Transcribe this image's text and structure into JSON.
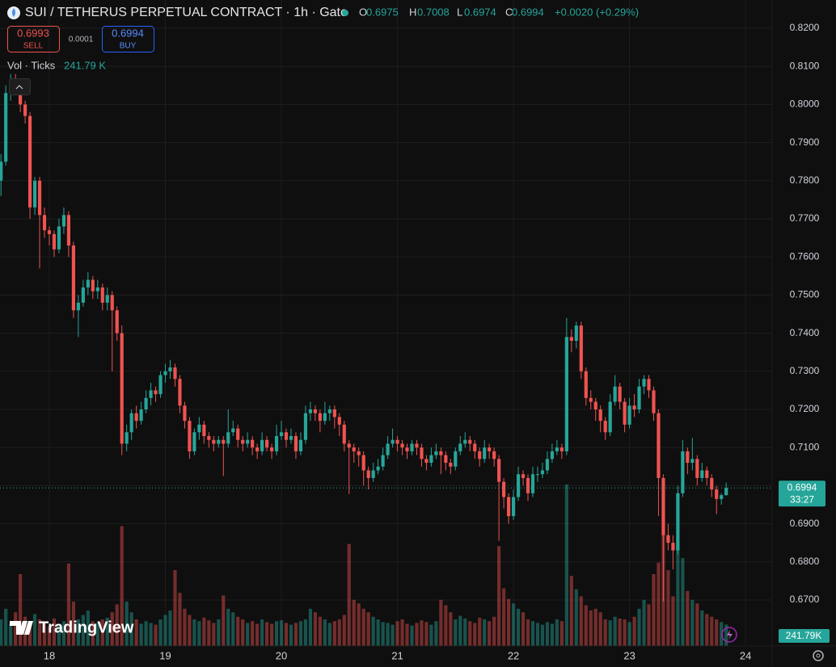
{
  "chart_data": {
    "type": "candlestick",
    "title": "SUI / TETHERUS PERPETUAL CONTRACT · 1h · Gate",
    "ohlc_labels": [
      "O",
      "H",
      "L",
      "C"
    ],
    "change": "+0.0020 (+0.29%)",
    "sell_price": "0.6993",
    "sell_label": "SELL",
    "spread": "0.0001",
    "buy_price": "0.6994",
    "buy_label": "BUY",
    "volume_title": "Vol · Ticks",
    "volume_legend": "241.79 K",
    "volume_axis_label": "241.79K",
    "brand": "TradingView",
    "last_price": 0.6994,
    "countdown": "33:27",
    "up_color": "#26a69a",
    "down_color": "#ef5350",
    "grid": true,
    "ylim": [
      0.65792,
      0.82742
    ],
    "yticks": [
      {
        "value": 0.82,
        "label": "0.8200"
      },
      {
        "value": 0.81,
        "label": "0.8100"
      },
      {
        "value": 0.8,
        "label": "0.8000"
      },
      {
        "value": 0.79,
        "label": "0.7900"
      },
      {
        "value": 0.78,
        "label": "0.7800"
      },
      {
        "value": 0.77,
        "label": "0.7700"
      },
      {
        "value": 0.76,
        "label": "0.7600"
      },
      {
        "value": 0.75,
        "label": "0.7500"
      },
      {
        "value": 0.74,
        "label": "0.7400"
      },
      {
        "value": 0.73,
        "label": "0.7300"
      },
      {
        "value": 0.72,
        "label": "0.7200"
      },
      {
        "value": 0.71,
        "label": "0.7100"
      },
      {
        "value": 0.7,
        "label": "0.7000"
      },
      {
        "value": 0.69,
        "label": "0.6900"
      },
      {
        "value": 0.68,
        "label": "0.6800"
      },
      {
        "value": 0.67,
        "label": "0.6700"
      }
    ],
    "xlim": [
      -0.2,
      159.5
    ],
    "xticks": [
      {
        "value": 10,
        "label": "18"
      },
      {
        "value": 34,
        "label": "19"
      },
      {
        "value": 58,
        "label": "20"
      },
      {
        "value": 82,
        "label": "21"
      },
      {
        "value": 106,
        "label": "22"
      },
      {
        "value": 130,
        "label": "23"
      },
      {
        "value": 154,
        "label": "24"
      }
    ],
    "candles": [
      [
        0.78,
        0.787,
        0.776,
        0.785
      ],
      [
        0.785,
        0.805,
        0.784,
        0.803
      ],
      [
        0.803,
        0.808,
        0.801,
        0.806
      ],
      [
        0.806,
        0.808,
        0.803,
        0.805
      ],
      [
        0.805,
        0.806,
        0.798,
        0.8
      ],
      [
        0.8,
        0.801,
        0.795,
        0.797
      ],
      [
        0.797,
        0.798,
        0.77,
        0.773
      ],
      [
        0.773,
        0.781,
        0.771,
        0.78
      ],
      [
        0.78,
        0.781,
        0.757,
        0.771
      ],
      [
        0.771,
        0.773,
        0.765,
        0.767
      ],
      [
        0.767,
        0.768,
        0.763,
        0.766
      ],
      [
        0.766,
        0.767,
        0.76,
        0.762
      ],
      [
        0.762,
        0.77,
        0.761,
        0.768
      ],
      [
        0.768,
        0.773,
        0.766,
        0.771
      ],
      [
        0.771,
        0.772,
        0.76,
        0.763
      ],
      [
        0.763,
        0.764,
        0.744,
        0.746
      ],
      [
        0.746,
        0.75,
        0.739,
        0.748
      ],
      [
        0.748,
        0.754,
        0.747,
        0.752
      ],
      [
        0.752,
        0.756,
        0.75,
        0.754
      ],
      [
        0.754,
        0.755,
        0.749,
        0.751
      ],
      [
        0.751,
        0.754,
        0.749,
        0.752
      ],
      [
        0.752,
        0.753,
        0.746,
        0.748
      ],
      [
        0.748,
        0.752,
        0.746,
        0.75
      ],
      [
        0.75,
        0.751,
        0.73,
        0.746
      ],
      [
        0.746,
        0.747,
        0.738,
        0.74
      ],
      [
        0.74,
        0.742,
        0.708,
        0.711
      ],
      [
        0.711,
        0.716,
        0.709,
        0.714
      ],
      [
        0.714,
        0.72,
        0.712,
        0.719
      ],
      [
        0.719,
        0.721,
        0.715,
        0.717
      ],
      [
        0.717,
        0.722,
        0.716,
        0.72
      ],
      [
        0.72,
        0.725,
        0.719,
        0.723
      ],
      [
        0.723,
        0.727,
        0.721,
        0.725
      ],
      [
        0.725,
        0.726,
        0.722,
        0.724
      ],
      [
        0.724,
        0.73,
        0.723,
        0.729
      ],
      [
        0.729,
        0.732,
        0.727,
        0.73
      ],
      [
        0.73,
        0.733,
        0.728,
        0.731
      ],
      [
        0.731,
        0.732,
        0.726,
        0.728
      ],
      [
        0.728,
        0.729,
        0.719,
        0.721
      ],
      [
        0.721,
        0.722,
        0.715,
        0.717
      ],
      [
        0.717,
        0.718,
        0.707,
        0.709
      ],
      [
        0.709,
        0.715,
        0.708,
        0.714
      ],
      [
        0.714,
        0.718,
        0.712,
        0.716
      ],
      [
        0.716,
        0.717,
        0.711,
        0.713
      ],
      [
        0.713,
        0.714,
        0.71,
        0.712
      ],
      [
        0.712,
        0.713,
        0.709,
        0.711
      ],
      [
        0.711,
        0.713,
        0.71,
        0.712
      ],
      [
        0.712,
        0.713,
        0.7025,
        0.711
      ],
      [
        0.711,
        0.72,
        0.71,
        0.714
      ],
      [
        0.714,
        0.717,
        0.713,
        0.715
      ],
      [
        0.715,
        0.716,
        0.71,
        0.712
      ],
      [
        0.712,
        0.713,
        0.709,
        0.711
      ],
      [
        0.711,
        0.714,
        0.71,
        0.712
      ],
      [
        0.712,
        0.713,
        0.708,
        0.71
      ],
      [
        0.71,
        0.711,
        0.707,
        0.709
      ],
      [
        0.709,
        0.714,
        0.708,
        0.712
      ],
      [
        0.712,
        0.713,
        0.709,
        0.71
      ],
      [
        0.71,
        0.711,
        0.707,
        0.709
      ],
      [
        0.709,
        0.716,
        0.708,
        0.713
      ],
      [
        0.713,
        0.717,
        0.712,
        0.714
      ],
      [
        0.714,
        0.715,
        0.71,
        0.712
      ],
      [
        0.712,
        0.715,
        0.711,
        0.713
      ],
      [
        0.713,
        0.714,
        0.707,
        0.709
      ],
      [
        0.709,
        0.714,
        0.708,
        0.712
      ],
      [
        0.712,
        0.721,
        0.711,
        0.719
      ],
      [
        0.719,
        0.722,
        0.717,
        0.72
      ],
      [
        0.72,
        0.721,
        0.717,
        0.719
      ],
      [
        0.719,
        0.72,
        0.714,
        0.717
      ],
      [
        0.717,
        0.722,
        0.716,
        0.719
      ],
      [
        0.719,
        0.721,
        0.717,
        0.72
      ],
      [
        0.72,
        0.721,
        0.715,
        0.718
      ],
      [
        0.718,
        0.719,
        0.713,
        0.716
      ],
      [
        0.716,
        0.717,
        0.709,
        0.711
      ],
      [
        0.711,
        0.712,
        0.6978,
        0.71
      ],
      [
        0.71,
        0.711,
        0.706,
        0.709
      ],
      [
        0.709,
        0.71,
        0.705,
        0.708
      ],
      [
        0.708,
        0.709,
        0.7,
        0.704
      ],
      [
        0.704,
        0.705,
        0.699,
        0.702
      ],
      [
        0.702,
        0.706,
        0.701,
        0.704
      ],
      [
        0.704,
        0.707,
        0.703,
        0.705
      ],
      [
        0.705,
        0.71,
        0.704,
        0.708
      ],
      [
        0.708,
        0.713,
        0.707,
        0.711
      ],
      [
        0.711,
        0.715,
        0.71,
        0.712
      ],
      [
        0.712,
        0.713,
        0.709,
        0.711
      ],
      [
        0.711,
        0.712,
        0.708,
        0.71
      ],
      [
        0.71,
        0.711,
        0.707,
        0.709
      ],
      [
        0.709,
        0.712,
        0.708,
        0.711
      ],
      [
        0.711,
        0.712,
        0.708,
        0.71
      ],
      [
        0.71,
        0.711,
        0.705,
        0.707
      ],
      [
        0.707,
        0.708,
        0.704,
        0.706
      ],
      [
        0.706,
        0.71,
        0.705,
        0.708
      ],
      [
        0.708,
        0.711,
        0.707,
        0.709
      ],
      [
        0.709,
        0.71,
        0.703,
        0.708
      ],
      [
        0.708,
        0.709,
        0.704,
        0.706
      ],
      [
        0.706,
        0.707,
        0.703,
        0.705
      ],
      [
        0.705,
        0.71,
        0.704,
        0.709
      ],
      [
        0.709,
        0.713,
        0.708,
        0.711
      ],
      [
        0.711,
        0.714,
        0.71,
        0.712
      ],
      [
        0.712,
        0.713,
        0.709,
        0.711
      ],
      [
        0.711,
        0.712,
        0.707,
        0.709
      ],
      [
        0.709,
        0.71,
        0.705,
        0.707
      ],
      [
        0.707,
        0.712,
        0.706,
        0.71
      ],
      [
        0.71,
        0.711,
        0.707,
        0.709
      ],
      [
        0.709,
        0.71,
        0.705,
        0.707
      ],
      [
        0.707,
        0.708,
        0.6855,
        0.701
      ],
      [
        0.701,
        0.702,
        0.694,
        0.697
      ],
      [
        0.697,
        0.698,
        0.69,
        0.692
      ],
      [
        0.692,
        0.699,
        0.691,
        0.697
      ],
      [
        0.697,
        0.705,
        0.696,
        0.703
      ],
      [
        0.703,
        0.704,
        0.7,
        0.702
      ],
      [
        0.702,
        0.703,
        0.696,
        0.698
      ],
      [
        0.698,
        0.705,
        0.697,
        0.703
      ],
      [
        0.703,
        0.705,
        0.701,
        0.703
      ],
      [
        0.703,
        0.706,
        0.702,
        0.704
      ],
      [
        0.704,
        0.709,
        0.703,
        0.707
      ],
      [
        0.707,
        0.711,
        0.706,
        0.709
      ],
      [
        0.709,
        0.712,
        0.708,
        0.71
      ],
      [
        0.71,
        0.711,
        0.707,
        0.709
      ],
      [
        0.709,
        0.744,
        0.708,
        0.739
      ],
      [
        0.739,
        0.741,
        0.735,
        0.738
      ],
      [
        0.738,
        0.743,
        0.736,
        0.742
      ],
      [
        0.742,
        0.743,
        0.728,
        0.73
      ],
      [
        0.73,
        0.731,
        0.721,
        0.723
      ],
      [
        0.723,
        0.725,
        0.72,
        0.722
      ],
      [
        0.722,
        0.723,
        0.717,
        0.72
      ],
      [
        0.72,
        0.721,
        0.714,
        0.717
      ],
      [
        0.717,
        0.718,
        0.712,
        0.714
      ],
      [
        0.714,
        0.724,
        0.713,
        0.722
      ],
      [
        0.722,
        0.729,
        0.721,
        0.726
      ],
      [
        0.726,
        0.727,
        0.72,
        0.722
      ],
      [
        0.722,
        0.723,
        0.714,
        0.716
      ],
      [
        0.716,
        0.723,
        0.715,
        0.721
      ],
      [
        0.721,
        0.724,
        0.718,
        0.72
      ],
      [
        0.72,
        0.728,
        0.719,
        0.726
      ],
      [
        0.726,
        0.729,
        0.724,
        0.728
      ],
      [
        0.728,
        0.729,
        0.723,
        0.725
      ],
      [
        0.725,
        0.726,
        0.717,
        0.719
      ],
      [
        0.719,
        0.72,
        0.692,
        0.702
      ],
      [
        0.702,
        0.703,
        0.6696,
        0.687
      ],
      [
        0.687,
        0.69,
        0.683,
        0.685
      ],
      [
        0.685,
        0.687,
        0.678,
        0.683
      ],
      [
        0.683,
        0.7,
        0.682,
        0.698
      ],
      [
        0.698,
        0.712,
        0.697,
        0.709
      ],
      [
        0.709,
        0.71,
        0.703,
        0.706
      ],
      [
        0.706,
        0.7125,
        0.704,
        0.707
      ],
      [
        0.707,
        0.708,
        0.7,
        0.702
      ],
      [
        0.702,
        0.706,
        0.701,
        0.704
      ],
      [
        0.704,
        0.705,
        0.7,
        0.702
      ],
      [
        0.702,
        0.703,
        0.697,
        0.699
      ],
      [
        0.699,
        0.7,
        0.6925,
        0.6965
      ],
      [
        0.6965,
        0.698,
        0.695,
        0.6975
      ],
      [
        0.6975,
        0.7008,
        0.6974,
        0.6994
      ]
    ],
    "volume": [
      300,
      420,
      250,
      380,
      810,
      330,
      280,
      360,
      300,
      260,
      220,
      310,
      250,
      280,
      930,
      500,
      300,
      350,
      400,
      280,
      260,
      300,
      320,
      380,
      470,
      1350,
      500,
      380,
      300,
      250,
      280,
      260,
      240,
      300,
      350,
      400,
      855,
      600,
      420,
      350,
      300,
      280,
      320,
      290,
      260,
      300,
      570,
      420,
      380,
      330,
      300,
      260,
      280,
      250,
      300,
      270,
      250,
      280,
      290,
      260,
      240,
      260,
      280,
      300,
      420,
      380,
      330,
      300,
      260,
      280,
      300,
      350,
      1150,
      520,
      480,
      420,
      380,
      330,
      300,
      270,
      260,
      240,
      280,
      300,
      250,
      230,
      260,
      290,
      270,
      240,
      280,
      520,
      460,
      380,
      300,
      340,
      310,
      280,
      260,
      320,
      300,
      280,
      330,
      1125,
      650,
      530,
      480,
      420,
      380,
      300,
      280,
      260,
      240,
      270,
      250,
      300,
      280,
      1820,
      790,
      640,
      560,
      460,
      400,
      420,
      380,
      300,
      290,
      330,
      310,
      300,
      270,
      330,
      420,
      520,
      470,
      810,
      940,
      1300,
      855,
      560,
      1215,
      990,
      620,
      520,
      480,
      400,
      360,
      330,
      300,
      270,
      241.79
    ]
  }
}
